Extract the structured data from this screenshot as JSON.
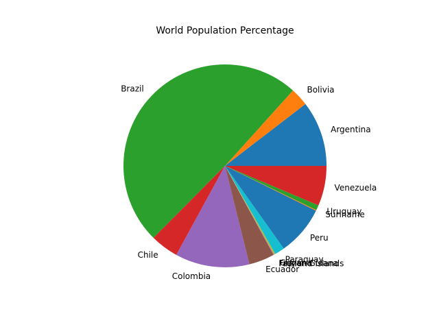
{
  "chart_data": {
    "type": "pie",
    "title": "World Population Percentage",
    "start_angle_deg": 0,
    "direction": "counterclockwise",
    "slices": [
      {
        "label": "Argentina",
        "value": 10.5,
        "color": "#1f77b4"
      },
      {
        "label": "Bolivia",
        "value": 2.9,
        "color": "#ff7f0e"
      },
      {
        "label": "Brazil",
        "value": 49.5,
        "color": "#2ca02c"
      },
      {
        "label": "Chile",
        "value": 4.5,
        "color": "#d62728"
      },
      {
        "label": "Colombia",
        "value": 11.9,
        "color": "#9467bd"
      },
      {
        "label": "Ecuador",
        "value": 4.1,
        "color": "#8c564b"
      },
      {
        "label": "Falkland Islands",
        "value": 0.05,
        "color": "#e377c2"
      },
      {
        "label": "French Guiana",
        "value": 0.07,
        "color": "#7f7f7f"
      },
      {
        "label": "Guyana",
        "value": 0.18,
        "color": "#bcbd22"
      },
      {
        "label": "Paraguay",
        "value": 1.6,
        "color": "#17becf"
      },
      {
        "label": "Peru",
        "value": 7.9,
        "color": "#1f77b4"
      },
      {
        "label": "Suriname",
        "value": 0.14,
        "color": "#ff7f0e"
      },
      {
        "label": "Uruguay",
        "value": 0.8,
        "color": "#2ca02c"
      },
      {
        "label": "Venezuela",
        "value": 6.4,
        "color": "#d62728"
      }
    ]
  }
}
